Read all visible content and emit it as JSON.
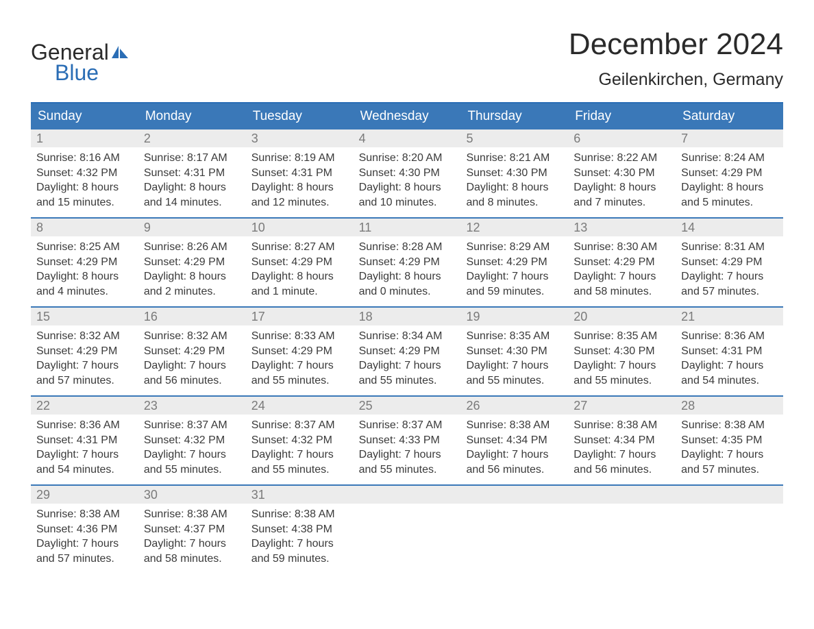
{
  "logo": {
    "text_general": "General",
    "text_blue": "Blue",
    "icon_color": "#2a6db5"
  },
  "header": {
    "title": "December 2024",
    "location": "Geilenkirchen, Germany"
  },
  "colors": {
    "header_bg": "#3a78b8",
    "week_border": "#3a78b8",
    "day_number_bg": "#ececec",
    "day_number_color": "#7a7a7a",
    "text_color": "#3a3a3a",
    "logo_blue": "#2a6db5"
  },
  "day_headers": [
    "Sunday",
    "Monday",
    "Tuesday",
    "Wednesday",
    "Thursday",
    "Friday",
    "Saturday"
  ],
  "weeks": [
    [
      {
        "day": "1",
        "sunrise": "Sunrise: 8:16 AM",
        "sunset": "Sunset: 4:32 PM",
        "daylight": "Daylight: 8 hours and 15 minutes."
      },
      {
        "day": "2",
        "sunrise": "Sunrise: 8:17 AM",
        "sunset": "Sunset: 4:31 PM",
        "daylight": "Daylight: 8 hours and 14 minutes."
      },
      {
        "day": "3",
        "sunrise": "Sunrise: 8:19 AM",
        "sunset": "Sunset: 4:31 PM",
        "daylight": "Daylight: 8 hours and 12 minutes."
      },
      {
        "day": "4",
        "sunrise": "Sunrise: 8:20 AM",
        "sunset": "Sunset: 4:30 PM",
        "daylight": "Daylight: 8 hours and 10 minutes."
      },
      {
        "day": "5",
        "sunrise": "Sunrise: 8:21 AM",
        "sunset": "Sunset: 4:30 PM",
        "daylight": "Daylight: 8 hours and 8 minutes."
      },
      {
        "day": "6",
        "sunrise": "Sunrise: 8:22 AM",
        "sunset": "Sunset: 4:30 PM",
        "daylight": "Daylight: 8 hours and 7 minutes."
      },
      {
        "day": "7",
        "sunrise": "Sunrise: 8:24 AM",
        "sunset": "Sunset: 4:29 PM",
        "daylight": "Daylight: 8 hours and 5 minutes."
      }
    ],
    [
      {
        "day": "8",
        "sunrise": "Sunrise: 8:25 AM",
        "sunset": "Sunset: 4:29 PM",
        "daylight": "Daylight: 8 hours and 4 minutes."
      },
      {
        "day": "9",
        "sunrise": "Sunrise: 8:26 AM",
        "sunset": "Sunset: 4:29 PM",
        "daylight": "Daylight: 8 hours and 2 minutes."
      },
      {
        "day": "10",
        "sunrise": "Sunrise: 8:27 AM",
        "sunset": "Sunset: 4:29 PM",
        "daylight": "Daylight: 8 hours and 1 minute."
      },
      {
        "day": "11",
        "sunrise": "Sunrise: 8:28 AM",
        "sunset": "Sunset: 4:29 PM",
        "daylight": "Daylight: 8 hours and 0 minutes."
      },
      {
        "day": "12",
        "sunrise": "Sunrise: 8:29 AM",
        "sunset": "Sunset: 4:29 PM",
        "daylight": "Daylight: 7 hours and 59 minutes."
      },
      {
        "day": "13",
        "sunrise": "Sunrise: 8:30 AM",
        "sunset": "Sunset: 4:29 PM",
        "daylight": "Daylight: 7 hours and 58 minutes."
      },
      {
        "day": "14",
        "sunrise": "Sunrise: 8:31 AM",
        "sunset": "Sunset: 4:29 PM",
        "daylight": "Daylight: 7 hours and 57 minutes."
      }
    ],
    [
      {
        "day": "15",
        "sunrise": "Sunrise: 8:32 AM",
        "sunset": "Sunset: 4:29 PM",
        "daylight": "Daylight: 7 hours and 57 minutes."
      },
      {
        "day": "16",
        "sunrise": "Sunrise: 8:32 AM",
        "sunset": "Sunset: 4:29 PM",
        "daylight": "Daylight: 7 hours and 56 minutes."
      },
      {
        "day": "17",
        "sunrise": "Sunrise: 8:33 AM",
        "sunset": "Sunset: 4:29 PM",
        "daylight": "Daylight: 7 hours and 55 minutes."
      },
      {
        "day": "18",
        "sunrise": "Sunrise: 8:34 AM",
        "sunset": "Sunset: 4:29 PM",
        "daylight": "Daylight: 7 hours and 55 minutes."
      },
      {
        "day": "19",
        "sunrise": "Sunrise: 8:35 AM",
        "sunset": "Sunset: 4:30 PM",
        "daylight": "Daylight: 7 hours and 55 minutes."
      },
      {
        "day": "20",
        "sunrise": "Sunrise: 8:35 AM",
        "sunset": "Sunset: 4:30 PM",
        "daylight": "Daylight: 7 hours and 55 minutes."
      },
      {
        "day": "21",
        "sunrise": "Sunrise: 8:36 AM",
        "sunset": "Sunset: 4:31 PM",
        "daylight": "Daylight: 7 hours and 54 minutes."
      }
    ],
    [
      {
        "day": "22",
        "sunrise": "Sunrise: 8:36 AM",
        "sunset": "Sunset: 4:31 PM",
        "daylight": "Daylight: 7 hours and 54 minutes."
      },
      {
        "day": "23",
        "sunrise": "Sunrise: 8:37 AM",
        "sunset": "Sunset: 4:32 PM",
        "daylight": "Daylight: 7 hours and 55 minutes."
      },
      {
        "day": "24",
        "sunrise": "Sunrise: 8:37 AM",
        "sunset": "Sunset: 4:32 PM",
        "daylight": "Daylight: 7 hours and 55 minutes."
      },
      {
        "day": "25",
        "sunrise": "Sunrise: 8:37 AM",
        "sunset": "Sunset: 4:33 PM",
        "daylight": "Daylight: 7 hours and 55 minutes."
      },
      {
        "day": "26",
        "sunrise": "Sunrise: 8:38 AM",
        "sunset": "Sunset: 4:34 PM",
        "daylight": "Daylight: 7 hours and 56 minutes."
      },
      {
        "day": "27",
        "sunrise": "Sunrise: 8:38 AM",
        "sunset": "Sunset: 4:34 PM",
        "daylight": "Daylight: 7 hours and 56 minutes."
      },
      {
        "day": "28",
        "sunrise": "Sunrise: 8:38 AM",
        "sunset": "Sunset: 4:35 PM",
        "daylight": "Daylight: 7 hours and 57 minutes."
      }
    ],
    [
      {
        "day": "29",
        "sunrise": "Sunrise: 8:38 AM",
        "sunset": "Sunset: 4:36 PM",
        "daylight": "Daylight: 7 hours and 57 minutes."
      },
      {
        "day": "30",
        "sunrise": "Sunrise: 8:38 AM",
        "sunset": "Sunset: 4:37 PM",
        "daylight": "Daylight: 7 hours and 58 minutes."
      },
      {
        "day": "31",
        "sunrise": "Sunrise: 8:38 AM",
        "sunset": "Sunset: 4:38 PM",
        "daylight": "Daylight: 7 hours and 59 minutes."
      },
      {
        "empty": true
      },
      {
        "empty": true
      },
      {
        "empty": true
      },
      {
        "empty": true
      }
    ]
  ]
}
